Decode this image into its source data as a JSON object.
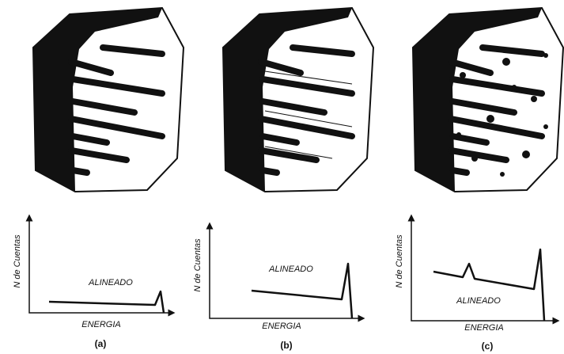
{
  "panels": [
    {
      "y_axis": "N de Cuentas",
      "annotation": "ALINEADO",
      "x_axis": "ENERGIA",
      "label": "(a)"
    },
    {
      "y_axis": "N de Cuentas",
      "annotation": "ALINEADO",
      "x_axis": "ENERGIA",
      "label": "(b)"
    },
    {
      "y_axis": "N de Cuentas",
      "annotation": "ALINEADO",
      "x_axis": "ENERGIA",
      "label": "(c)"
    }
  ]
}
